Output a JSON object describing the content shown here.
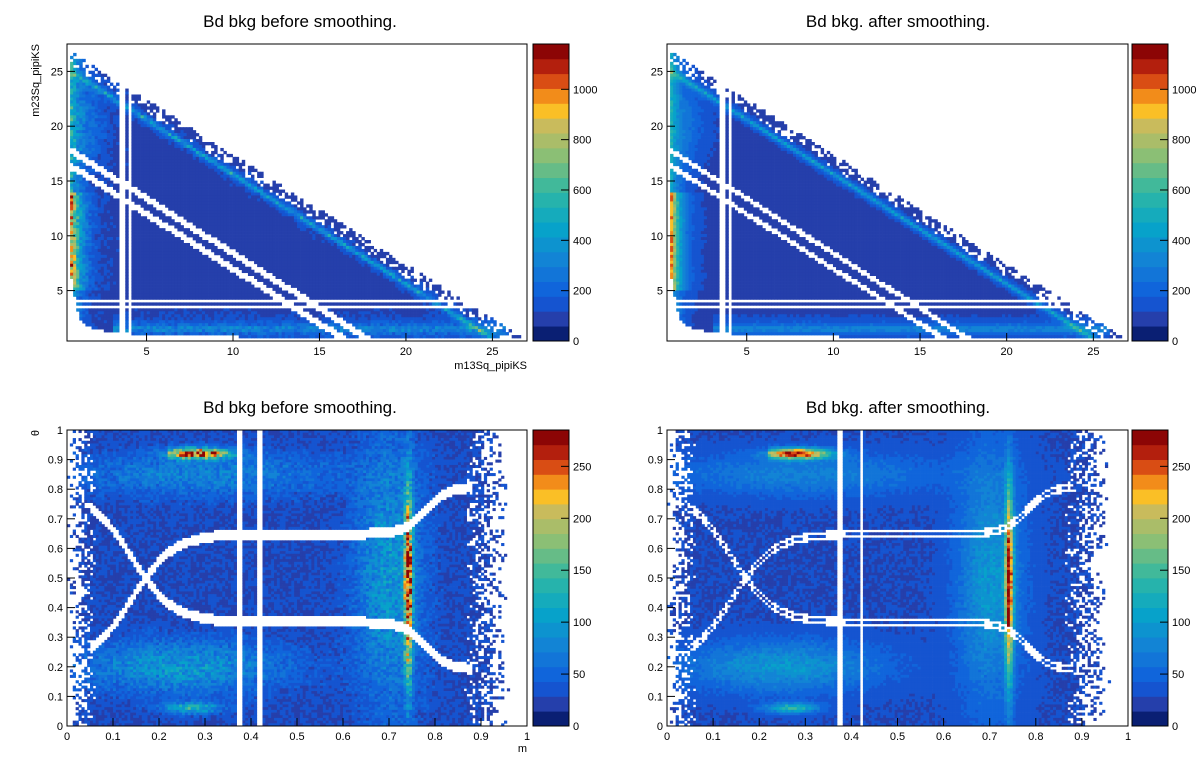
{
  "chart_data": [
    {
      "type": "heatmap",
      "title": "Bd bkg before smoothing.",
      "xlabel": "m13Sq_pipiKS",
      "ylabel": "m23Sq_pipiKS",
      "xlim": [
        0.4,
        27.0
      ],
      "ylim": [
        0.4,
        27.5
      ],
      "xticks": [
        5,
        10,
        15,
        20,
        25
      ],
      "yticks": [
        5,
        10,
        15,
        20,
        25
      ],
      "zlim": [
        0,
        1180
      ],
      "zticks": [
        0,
        200,
        400,
        600,
        800,
        1000
      ],
      "colormap": "kBird",
      "shape": "dalitz",
      "smoothed": false
    },
    {
      "type": "heatmap",
      "title": "Bd bkg. after smoothing.",
      "xlabel": "",
      "ylabel": "",
      "xlim": [
        0.4,
        27.0
      ],
      "ylim": [
        0.4,
        27.5
      ],
      "xticks": [
        5,
        10,
        15,
        20,
        25
      ],
      "yticks": [
        5,
        10,
        15,
        20,
        25
      ],
      "zlim": [
        0,
        1180
      ],
      "zticks": [
        0,
        200,
        400,
        600,
        800,
        1000
      ],
      "colormap": "kBird",
      "shape": "dalitz",
      "smoothed": true
    },
    {
      "type": "heatmap",
      "title": "Bd bkg before smoothing.",
      "xlabel": "m",
      "ylabel": "θ",
      "xlim": [
        0,
        1
      ],
      "ylim": [
        0,
        1
      ],
      "xticks": [
        0,
        0.1,
        0.2,
        0.3,
        0.4,
        0.5,
        0.6,
        0.7,
        0.8,
        0.9,
        1
      ],
      "yticks": [
        0,
        0.1,
        0.2,
        0.3,
        0.4,
        0.5,
        0.6,
        0.7,
        0.8,
        0.9,
        1
      ],
      "zlim": [
        0,
        285
      ],
      "zticks": [
        0,
        50,
        100,
        150,
        200,
        250
      ],
      "colormap": "kBird",
      "shape": "square",
      "smoothed": false
    },
    {
      "type": "heatmap",
      "title": "Bd bkg. after smoothing.",
      "xlabel": "",
      "ylabel": "",
      "xlim": [
        0,
        1
      ],
      "ylim": [
        0,
        1
      ],
      "xticks": [
        0,
        0.1,
        0.2,
        0.3,
        0.4,
        0.5,
        0.6,
        0.7,
        0.8,
        0.9,
        1
      ],
      "yticks": [
        0,
        0.1,
        0.2,
        0.3,
        0.4,
        0.5,
        0.6,
        0.7,
        0.8,
        0.9,
        1
      ],
      "zlim": [
        0,
        285
      ],
      "zticks": [
        0,
        50,
        100,
        150,
        200,
        250
      ],
      "colormap": "kBird",
      "shape": "square",
      "smoothed": true
    }
  ]
}
